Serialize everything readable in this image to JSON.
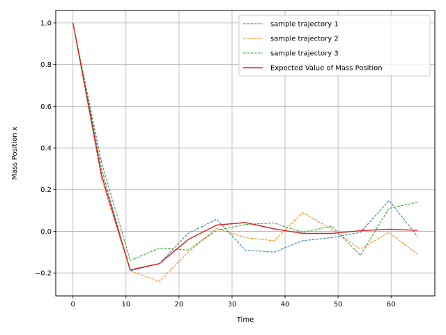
{
  "chart_data": {
    "type": "line",
    "title": "",
    "xlabel": "Time",
    "ylabel": "Mass Position x",
    "xlim": [
      -3.25,
      68.25
    ],
    "ylim": [
      -0.31,
      1.06
    ],
    "xticks": [
      0,
      10,
      20,
      30,
      40,
      50,
      60
    ],
    "yticks": [
      -0.2,
      0.0,
      0.2,
      0.4,
      0.6,
      0.8,
      1.0
    ],
    "xtick_labels": [
      "0",
      "10",
      "20",
      "30",
      "40",
      "50",
      "60"
    ],
    "ytick_labels": [
      "−0.2",
      "0.0",
      "0.2",
      "0.4",
      "0.6",
      "0.8",
      "1.0"
    ],
    "grid": true,
    "legend_position": "top-right",
    "x": [
      0,
      5.4,
      10.8,
      16.3,
      21.7,
      27.1,
      32.5,
      37.9,
      43.3,
      48.8,
      54.2,
      59.6,
      65.0
    ],
    "series": [
      {
        "name": "sample trajectory 1",
        "color": "#1f77b4",
        "style": "dashed",
        "values": [
          1.0,
          0.3,
          -0.19,
          -0.155,
          -0.01,
          0.058,
          -0.09,
          -0.1,
          -0.045,
          -0.03,
          -0.005,
          0.148,
          -0.025
        ]
      },
      {
        "name": "sample trajectory 2",
        "color": "#ff7f0e",
        "style": "dashed",
        "values": [
          1.0,
          0.25,
          -0.19,
          -0.24,
          -0.1,
          0.015,
          -0.03,
          -0.045,
          0.09,
          0.01,
          -0.085,
          -0.005,
          -0.11
        ]
      },
      {
        "name": "sample trajectory 3",
        "color": "#2ca02c",
        "style": "dashed",
        "values": [
          1.0,
          0.33,
          -0.14,
          -0.08,
          -0.09,
          0.005,
          0.033,
          0.04,
          -0.005,
          0.025,
          -0.115,
          0.11,
          0.14
        ]
      },
      {
        "name": "Expected Value of Mass Position",
        "color": "#d62728",
        "style": "solid",
        "values": [
          1.0,
          0.27,
          -0.185,
          -0.155,
          -0.04,
          0.03,
          0.042,
          0.012,
          -0.01,
          -0.01,
          0.003,
          0.01,
          0.005
        ]
      }
    ]
  }
}
